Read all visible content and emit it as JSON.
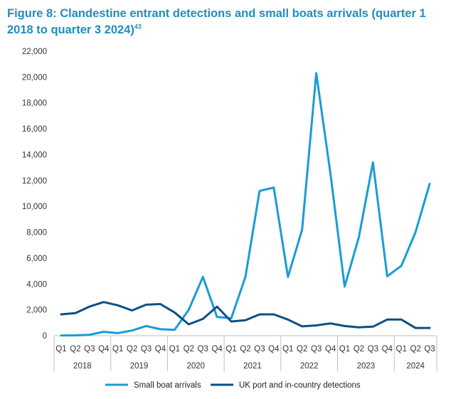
{
  "figure": {
    "title": "Figure 8: Clandestine entrant detections and small boats arrivals (quarter 1 2018 to quarter 3 2024)",
    "footnote": "43"
  },
  "chart_data": {
    "type": "line",
    "title": "Figure 8: Clandestine entrant detections and small boats arrivals (quarter 1 2018 to quarter 3 2024)",
    "xlabel": "",
    "ylabel": "",
    "ylim": [
      0,
      22000
    ],
    "yticks": [
      0,
      2000,
      4000,
      6000,
      8000,
      10000,
      12000,
      14000,
      16000,
      18000,
      20000,
      22000
    ],
    "ytick_labels": [
      "0",
      "2,000",
      "4,000",
      "6,000",
      "8,000",
      "10,000",
      "12,000",
      "14,000",
      "16,000",
      "18,000",
      "20,000",
      "22,000"
    ],
    "categories": [
      "Q1",
      "Q2",
      "Q3",
      "Q4",
      "Q1",
      "Q2",
      "Q3",
      "Q4",
      "Q1",
      "Q2",
      "Q3",
      "Q4",
      "Q1",
      "Q2",
      "Q3",
      "Q4",
      "Q1",
      "Q2",
      "Q3",
      "Q4",
      "Q1",
      "Q2",
      "Q3",
      "Q4",
      "Q1",
      "Q2",
      "Q3"
    ],
    "year_groups": [
      {
        "label": "2018",
        "count": 4
      },
      {
        "label": "2019",
        "count": 4
      },
      {
        "label": "2020",
        "count": 4
      },
      {
        "label": "2021",
        "count": 4
      },
      {
        "label": "2022",
        "count": 4
      },
      {
        "label": "2023",
        "count": 4
      },
      {
        "label": "2024",
        "count": 3
      }
    ],
    "legend_position": "bottom",
    "grid": false,
    "series": [
      {
        "name": "Small boat arrivals",
        "color": "#1a9bd7",
        "values": [
          20,
          30,
          70,
          300,
          200,
          400,
          750,
          500,
          450,
          2000,
          4550,
          1450,
          1350,
          4550,
          11200,
          11450,
          4550,
          8200,
          20300,
          12500,
          3800,
          7600,
          13400,
          4600,
          5400,
          8000,
          11750
        ]
      },
      {
        "name": "UK port and in-country detections",
        "color": "#0b4f86",
        "values": [
          1650,
          1750,
          2250,
          2600,
          2350,
          1950,
          2400,
          2450,
          1800,
          880,
          1300,
          2250,
          1100,
          1200,
          1650,
          1650,
          1250,
          720,
          800,
          950,
          750,
          650,
          700,
          1250,
          1250,
          600,
          600
        ]
      }
    ]
  }
}
